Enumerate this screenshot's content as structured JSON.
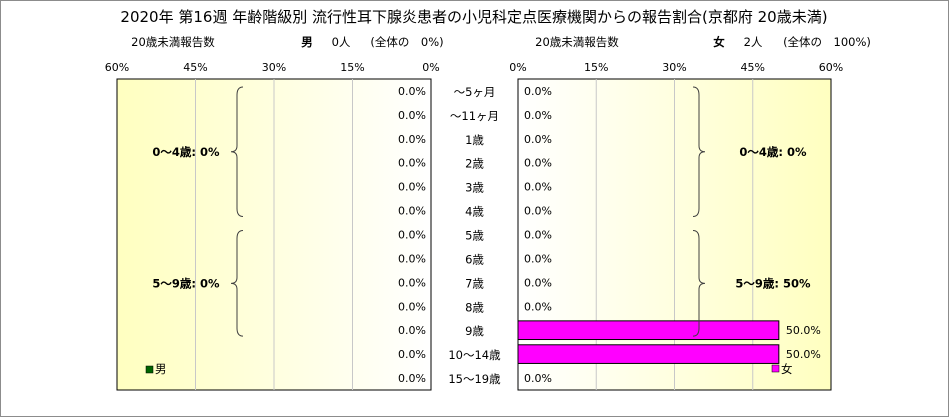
{
  "title": "2020年 第16週 年齢階級別 流行性耳下腺炎患者の小児科定点医療機関からの報告割合(京都府 20歳未満)",
  "left_header": {
    "reports_label": "20歳未満報告数",
    "sex": "男",
    "count": "0人",
    "share": "(全体の　0%)"
  },
  "right_header": {
    "reports_label": "20歳未満報告数",
    "sex": "女",
    "count": "2人",
    "share": "(全体の　100%)"
  },
  "colors": {
    "male_legend": "#006400",
    "female_bar": "#ff00ff",
    "panel_fill_light": "#ffffff",
    "panel_fill_dark": "#ffffc0"
  },
  "chart_data": {
    "type": "bar",
    "orientation": "horizontal",
    "layout": "population-pyramid",
    "categories": [
      "～5ヶ月",
      "～11ヶ月",
      "1歳",
      "2歳",
      "3歳",
      "4歳",
      "5歳",
      "6歳",
      "7歳",
      "8歳",
      "9歳",
      "10～14歳",
      "15～19歳"
    ],
    "xlim": [
      0,
      60
    ],
    "ticks": [
      0,
      15,
      30,
      45,
      60
    ],
    "tick_labels": [
      "0%",
      "15%",
      "30%",
      "45%",
      "60%"
    ],
    "series": [
      {
        "name": "男",
        "side": "left",
        "values": [
          0,
          0,
          0,
          0,
          0,
          0,
          0,
          0,
          0,
          0,
          0,
          0,
          0
        ],
        "value_labels": [
          "0.0%",
          "0.0%",
          "0.0%",
          "0.0%",
          "0.0%",
          "0.0%",
          "0.0%",
          "0.0%",
          "0.0%",
          "0.0%",
          "0.0%",
          "0.0%",
          "0.0%"
        ]
      },
      {
        "name": "女",
        "side": "right",
        "values": [
          0,
          0,
          0,
          0,
          0,
          0,
          0,
          0,
          0,
          0,
          50,
          50,
          0
        ],
        "value_labels": [
          "0.0%",
          "0.0%",
          "0.0%",
          "0.0%",
          "0.0%",
          "0.0%",
          "0.0%",
          "0.0%",
          "0.0%",
          "0.0%",
          "50.0%",
          "50.0%",
          "0.0%"
        ]
      }
    ],
    "annotations": {
      "left": [
        {
          "text": "0～4歳: 0%",
          "from": 0,
          "to": 5
        },
        {
          "text": "5～9歳: 0%",
          "from": 6,
          "to": 10
        }
      ],
      "right": [
        {
          "text": "0～4歳: 0%",
          "from": 0,
          "to": 5
        },
        {
          "text": "5～9歳: 50%",
          "from": 6,
          "to": 10
        }
      ]
    },
    "legend": {
      "male": "男",
      "female": "女"
    },
    "grid": true
  }
}
